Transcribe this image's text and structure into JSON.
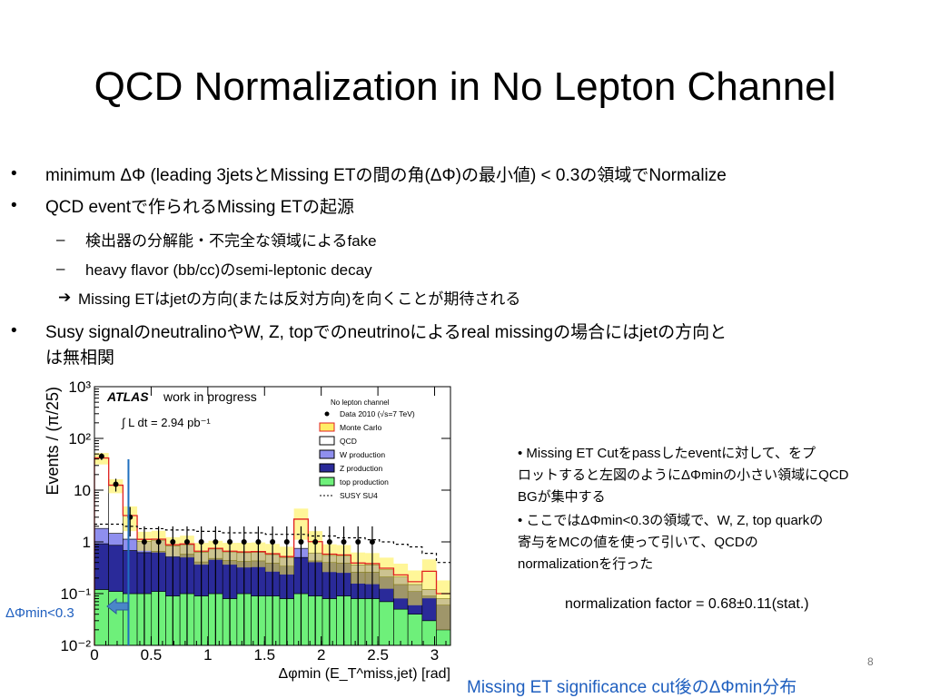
{
  "slide": {
    "title": "QCD Normalization in No Lepton Channel",
    "page_number": "8",
    "bullets": [
      "minimum ΔΦ (leading 3jetsとMissing ETの間の角(ΔΦ)の最小値) < 0.3の領域でNormalize",
      "QCD eventで作られるMissing ETの起源",
      "検出器の分解能・不完全な領域によるfake",
      "heavy flavor (bb/cc)のsemi-leptonic decay",
      "Missing ETはjetの方向(または反対方向)を向くことが期待される",
      "Susy signalのneutralinoやW, Z, topでのneutrinoによるreal missingの場合にはjetの方向と",
      "は無相関"
    ],
    "bullet_marker": "•",
    "dash_marker": "–",
    "arrow_marker": "➔",
    "right_notes": [
      "•  Missing ET Cutをpassしたeventに対して、をプ",
      "ロットすると左図のようにΔΦminの小さい領域にQCD",
      "BGが集中する",
      "•  ここではΔΦmin<0.3の領域で、W, Z, top quarkの",
      "寄与をMCの値を使って引いて、QCDの",
      "normalizationを行った"
    ],
    "normalization_factor": "normalization factor = 0.68±0.11(stat.)",
    "caption": "Missing ET significance cut後のΔΦmin分布",
    "cut_label": "ΔΦmin<0.3",
    "colors": {
      "caption_blue": "#1f5fbf",
      "cut_line": "#1f6fbf"
    }
  },
  "chart_data": {
    "type": "bar",
    "stacked": true,
    "log_y": true,
    "ylim": [
      0.01,
      1000
    ],
    "xlim": [
      0,
      3.14
    ],
    "x_ticks": [
      "0",
      "0.5",
      "1",
      "1.5",
      "2",
      "2.5",
      "3"
    ],
    "y_ticks": [
      "10⁻²",
      "10⁻¹",
      "1",
      "10",
      "10²",
      "10³"
    ],
    "xlabel": "Δφmin (E_T^miss,jet) [rad]",
    "ylabel": "Events / (π/25)",
    "header": "ATLAS",
    "header_sub": "work in progress",
    "lumi": "∫ L dt = 2.94 pb⁻¹",
    "legend_title": "No lepton channel",
    "legend": [
      {
        "name": "Data 2010 (√s=7 TeV)",
        "style": "marker",
        "color": "#000000"
      },
      {
        "name": "Monte Carlo",
        "style": "band",
        "color": "#ffee66"
      },
      {
        "name": "QCD",
        "style": "fill",
        "color": "#ffffff"
      },
      {
        "name": "W production",
        "style": "fill",
        "color": "#8f8fee"
      },
      {
        "name": "Z production",
        "style": "fill",
        "color": "#2a2a99"
      },
      {
        "name": "top production",
        "style": "fill",
        "color": "#6ef07a"
      },
      {
        "name": "SUSY SU4",
        "style": "dashed",
        "color": "#000000"
      }
    ],
    "bin_edges": [
      0,
      0.1257,
      0.2513,
      0.377,
      0.5027,
      0.6283,
      0.754,
      0.8796,
      1.0053,
      1.131,
      1.2566,
      1.3823,
      1.508,
      1.6336,
      1.7593,
      1.885,
      2.0106,
      2.1363,
      2.2619,
      2.3876,
      2.5133,
      2.6389,
      2.7646,
      2.8903,
      3.0159,
      3.1416
    ],
    "series": [
      {
        "name": "top production",
        "color": "#6ef07a",
        "values": [
          0.12,
          0.11,
          0.1,
          0.1,
          0.11,
          0.09,
          0.1,
          0.09,
          0.1,
          0.08,
          0.1,
          0.09,
          0.09,
          0.08,
          0.1,
          0.09,
          0.08,
          0.09,
          0.08,
          0.08,
          0.07,
          0.05,
          0.04,
          0.03,
          0.02
        ]
      },
      {
        "name": "Z production",
        "color": "#2a2a99",
        "values": [
          0.8,
          0.75,
          0.58,
          0.52,
          0.55,
          0.42,
          0.48,
          0.32,
          0.38,
          0.36,
          0.32,
          0.34,
          0.3,
          0.26,
          0.4,
          0.34,
          0.32,
          0.3,
          0.18,
          0.18,
          0.14,
          0.1,
          0.07,
          0.06,
          0.04
        ]
      },
      {
        "name": "W production",
        "color": "#8f8fee",
        "values": [
          0.9,
          0.6,
          0.45,
          0.4,
          0.42,
          0.33,
          0.3,
          0.22,
          0.25,
          0.2,
          0.2,
          0.2,
          0.18,
          0.16,
          0.25,
          0.18,
          0.15,
          0.14,
          0.1,
          0.1,
          0.08,
          0.06,
          0.04,
          0.03,
          0.02
        ]
      },
      {
        "name": "QCD",
        "color": "#ffffff",
        "values": [
          40,
          11,
          2.1,
          0.1,
          0.05,
          0.04,
          0.03,
          0.03,
          0.02,
          0.02,
          0.02,
          0.02,
          0.02,
          0.02,
          2.0,
          0.4,
          0.03,
          0.03,
          0.03,
          0.02,
          0.02,
          0.02,
          0.02,
          0.15,
          0.02
        ]
      }
    ],
    "mc_uncertainty_frac": [
      0.25,
      0.3,
      0.5,
      0.4,
      0.45,
      0.4,
      0.45,
      0.45,
      0.4,
      0.45,
      0.5,
      0.5,
      0.55,
      0.55,
      0.6,
      0.6,
      0.55,
      0.55,
      0.6,
      0.6,
      0.6,
      0.65,
      0.65,
      0.7,
      0.8
    ],
    "susy_su4": [
      2.2,
      2.2,
      2.0,
      1.8,
      1.8,
      1.7,
      1.7,
      1.6,
      1.6,
      1.5,
      1.5,
      1.5,
      1.4,
      1.4,
      1.4,
      1.3,
      1.3,
      1.2,
      1.2,
      1.1,
      1.0,
      0.9,
      0.8,
      0.6,
      0.4
    ],
    "data": {
      "x": [
        0.0628,
        0.1885,
        0.3142,
        0.4398,
        0.5655,
        0.6912,
        0.8168,
        0.9425,
        1.0681,
        1.1938,
        1.3195,
        1.4451,
        1.5708,
        1.6965,
        1.8221,
        1.9478,
        2.0735,
        2.1991,
        2.3248,
        2.4504
      ],
      "y": [
        45,
        13,
        3,
        1,
        1,
        1,
        1,
        1,
        1,
        1,
        1,
        1,
        1,
        1,
        1,
        1,
        1,
        1,
        1,
        1
      ]
    },
    "cut_value": 0.3
  }
}
